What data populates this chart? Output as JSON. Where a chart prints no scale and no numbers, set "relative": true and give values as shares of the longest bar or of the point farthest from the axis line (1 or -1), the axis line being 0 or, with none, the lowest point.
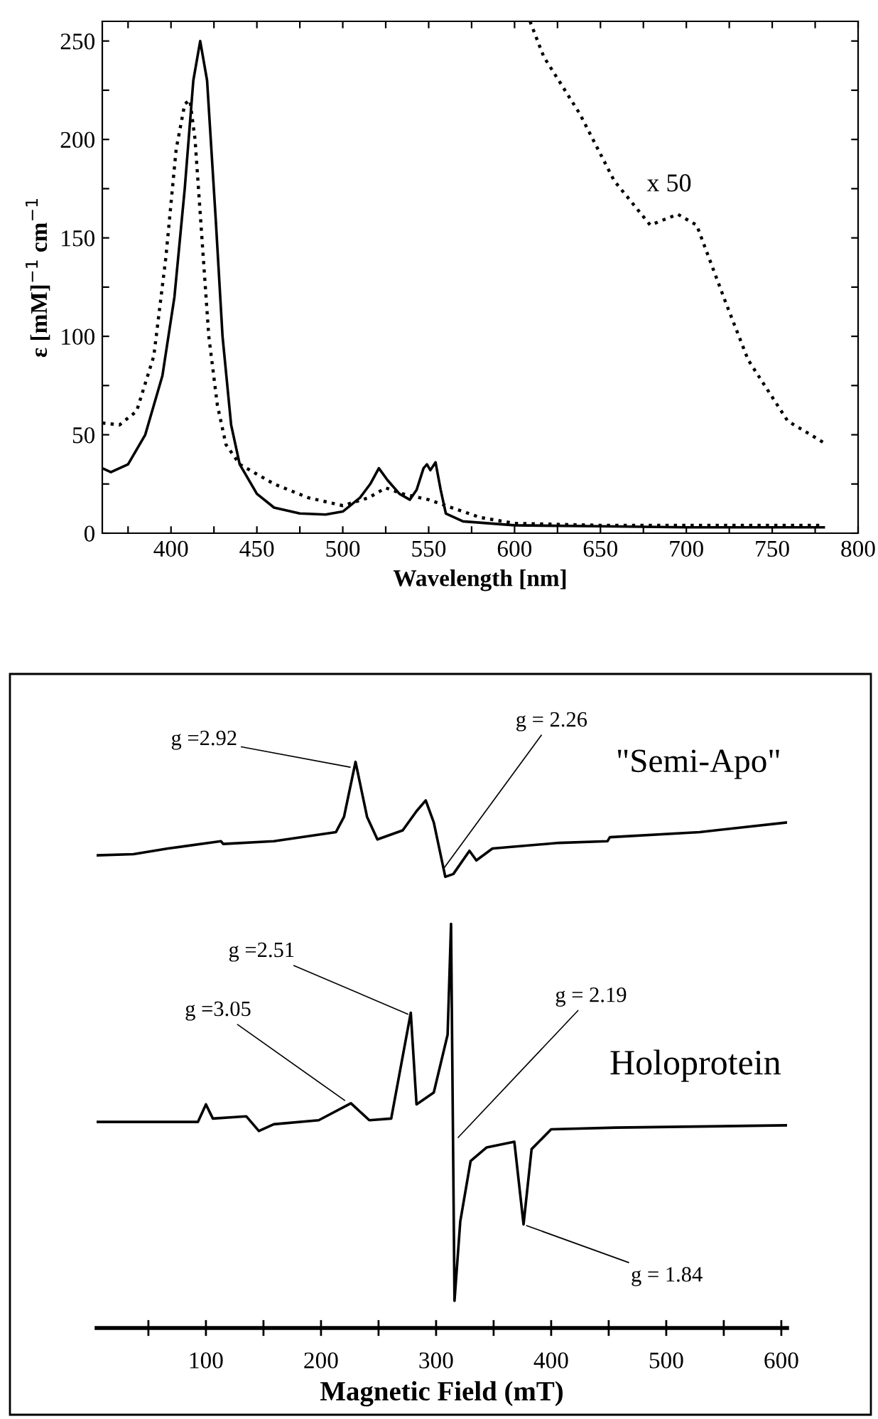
{
  "chart_data": [
    {
      "type": "line",
      "xlabel": "Wavelength [nm]",
      "ylabel": "ε [mM]$^{−1}$ cm$^{−1}$",
      "xlim": [
        360,
        800
      ],
      "ylim": [
        0,
        260
      ],
      "xticks": [
        {
          "value": 375,
          "label": null
        },
        400,
        {
          "value": 425,
          "label": null
        },
        450,
        {
          "value": 475,
          "label": null
        },
        500,
        {
          "value": 525,
          "label": null
        },
        550,
        {
          "value": 575,
          "label": null
        },
        600,
        {
          "value": 625,
          "label": null
        },
        650,
        {
          "value": 675,
          "label": null
        },
        700,
        {
          "value": 725,
          "label": null
        },
        750,
        {
          "value": 775,
          "label": null
        },
        800
      ],
      "yticks": [
        0,
        {
          "value": 25,
          "label": null
        },
        50,
        {
          "value": 75,
          "label": null
        },
        100,
        {
          "value": 125,
          "label": null
        },
        150,
        {
          "value": 175,
          "label": null
        },
        200,
        {
          "value": 225,
          "label": null
        },
        250
      ],
      "grid": false,
      "legend": false,
      "marker": "none",
      "annotations": [
        "x 50"
      ],
      "series": [
        {
          "color": "#000000",
          "line_style": "solid",
          "x": [
            360,
            365,
            375,
            385,
            395,
            402,
            408,
            413,
            417,
            421,
            426,
            430,
            435,
            440,
            450,
            460,
            475,
            490,
            500,
            510,
            516,
            521,
            526,
            533,
            539,
            543,
            547,
            549,
            551,
            554,
            557,
            560,
            570,
            600,
            650,
            700,
            780
          ],
          "values": [
            33,
            31,
            35,
            50,
            80,
            120,
            175,
            230,
            250,
            230,
            160,
            100,
            55,
            35,
            20,
            13,
            10,
            9.5,
            11,
            18,
            25,
            33,
            27,
            20,
            17,
            22,
            33,
            35,
            32,
            36,
            22,
            10,
            6,
            4,
            3.5,
            3,
            3
          ]
        },
        {
          "color": "#000000",
          "line_style": "dotted",
          "x": [
            360,
            370,
            380,
            390,
            397,
            403,
            408,
            411,
            414,
            418,
            422,
            427,
            432,
            440,
            460,
            480,
            500,
            515,
            525,
            535,
            550,
            560,
            580,
            600,
            650,
            700,
            780
          ],
          "values": [
            56,
            55,
            62,
            90,
            140,
            195,
            218,
            220,
            200,
            150,
            100,
            65,
            45,
            35,
            25,
            18,
            14,
            18,
            23,
            20,
            17,
            14,
            8,
            5,
            4,
            4,
            4
          ]
        },
        {
          "color": "#000000",
          "line_style": "dotted",
          "x": [
            609,
            617,
            638,
            658,
            679,
            695,
            706,
            723,
            736,
            759,
            780
          ],
          "values": [
            260,
            242,
            213,
            179,
            156.5,
            162,
            156.5,
            117,
            88,
            57,
            46
          ]
        }
      ]
    },
    {
      "type": "line",
      "relative": true,
      "xlabel": "Magnetic Field (mT)",
      "xlim": [
        5,
        605
      ],
      "xticks": [
        {
          "value": 50,
          "label": null
        },
        100,
        {
          "value": 150,
          "label": null
        },
        200,
        {
          "value": 250,
          "label": null
        },
        300,
        {
          "value": 350,
          "label": null
        },
        400,
        {
          "value": 450,
          "label": null
        },
        500,
        {
          "value": 550,
          "label": null
        },
        600
      ],
      "tick_labels": "x",
      "grid": false,
      "legend": false,
      "marker": "none",
      "annotations": [
        {
          "text": "g =2.92",
          "x": 227,
          "y": 0.99
        },
        {
          "text": "g = 2.26",
          "x": 306,
          "y": 0.81
        },
        {
          "text": "g =2.51",
          "x": 277,
          "y": 0.553
        },
        {
          "text": "g =3.05",
          "x": 222,
          "y": 0.4
        },
        {
          "text": "g = 2.19",
          "x": 318,
          "y": 0.334
        },
        {
          "text": "g = 1.84",
          "x": 377,
          "y": 0.182
        }
      ],
      "series": [
        {
          "name": "\"Semi-Apo\"",
          "color": "#000000",
          "line_style": "solid",
          "x": [
            5,
            37,
            67,
            113,
            115,
            159,
            213,
            220,
            230,
            240,
            249,
            271,
            283,
            291,
            298,
            308,
            315,
            329,
            335,
            349,
            407,
            449,
            451,
            529,
            605
          ],
          "values": [
            0.835,
            0.837,
            0.847,
            0.86,
            0.855,
            0.86,
            0.876,
            0.903,
            1.0,
            0.903,
            0.863,
            0.879,
            0.913,
            0.932,
            0.893,
            0.797,
            0.802,
            0.843,
            0.826,
            0.847,
            0.857,
            0.86,
            0.867,
            0.876,
            0.893
          ]
        },
        {
          "name": "Holoprotein",
          "color": "#000000",
          "line_style": "solid",
          "x": [
            5,
            93,
            100,
            106,
            135,
            146,
            159,
            198,
            226,
            242,
            261,
            278,
            283,
            298,
            310,
            313,
            316,
            321,
            330,
            344,
            368,
            376,
            383,
            400,
            456,
            605
          ],
          "values": [
            0.364,
            0.364,
            0.395,
            0.37,
            0.374,
            0.348,
            0.36,
            0.367,
            0.397,
            0.367,
            0.37,
            0.557,
            0.395,
            0.416,
            0.518,
            0.714,
            0.048,
            0.188,
            0.295,
            0.319,
            0.329,
            0.183,
            0.316,
            0.351,
            0.354,
            0.358
          ]
        }
      ]
    }
  ]
}
